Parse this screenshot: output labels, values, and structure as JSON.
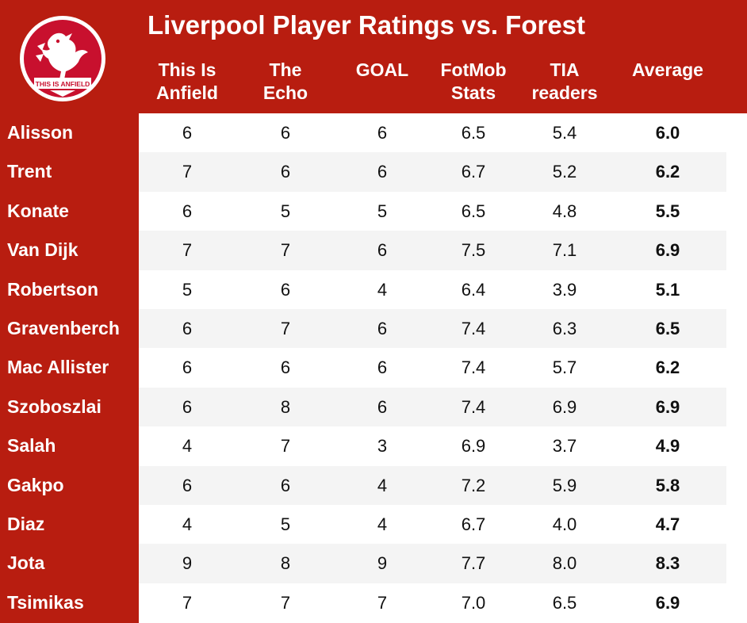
{
  "title": "Liverpool Player Ratings vs. Forest",
  "logo": {
    "text": "THIS IS ANFIELD"
  },
  "colors": {
    "brand_red": "#b81d10",
    "row_alt": "#f4f4f4",
    "text_dark": "#111111"
  },
  "chart_data": {
    "type": "table",
    "title": "Liverpool Player Ratings vs. Forest",
    "columns": [
      "This Is\nAnfield",
      "The\nEcho",
      "GOAL",
      "FotMob\nStats",
      "TIA\nreaders",
      "Average"
    ],
    "rows": [
      {
        "player": "Alisson",
        "values": [
          "6",
          "6",
          "6",
          "6.5",
          "5.4",
          "6.0"
        ]
      },
      {
        "player": "Trent",
        "values": [
          "7",
          "6",
          "6",
          "6.7",
          "5.2",
          "6.2"
        ]
      },
      {
        "player": "Konate",
        "values": [
          "6",
          "5",
          "5",
          "6.5",
          "4.8",
          "5.5"
        ]
      },
      {
        "player": "Van Dijk",
        "values": [
          "7",
          "7",
          "6",
          "7.5",
          "7.1",
          "6.9"
        ]
      },
      {
        "player": "Robertson",
        "values": [
          "5",
          "6",
          "4",
          "6.4",
          "3.9",
          "5.1"
        ]
      },
      {
        "player": "Gravenberch",
        "values": [
          "6",
          "7",
          "6",
          "7.4",
          "6.3",
          "6.5"
        ]
      },
      {
        "player": "Mac Allister",
        "values": [
          "6",
          "6",
          "6",
          "7.4",
          "5.7",
          "6.2"
        ]
      },
      {
        "player": "Szoboszlai",
        "values": [
          "6",
          "8",
          "6",
          "7.4",
          "6.9",
          "6.9"
        ]
      },
      {
        "player": "Salah",
        "values": [
          "4",
          "7",
          "3",
          "6.9",
          "3.7",
          "4.9"
        ]
      },
      {
        "player": "Gakpo",
        "values": [
          "6",
          "6",
          "4",
          "7.2",
          "5.9",
          "5.8"
        ]
      },
      {
        "player": "Diaz",
        "values": [
          "4",
          "5",
          "4",
          "6.7",
          "4.0",
          "4.7"
        ]
      },
      {
        "player": "Jota",
        "values": [
          "9",
          "8",
          "9",
          "7.7",
          "8.0",
          "8.3"
        ]
      },
      {
        "player": "Tsimikas",
        "values": [
          "7",
          "7",
          "7",
          "7.0",
          "6.5",
          "6.9"
        ]
      }
    ]
  }
}
